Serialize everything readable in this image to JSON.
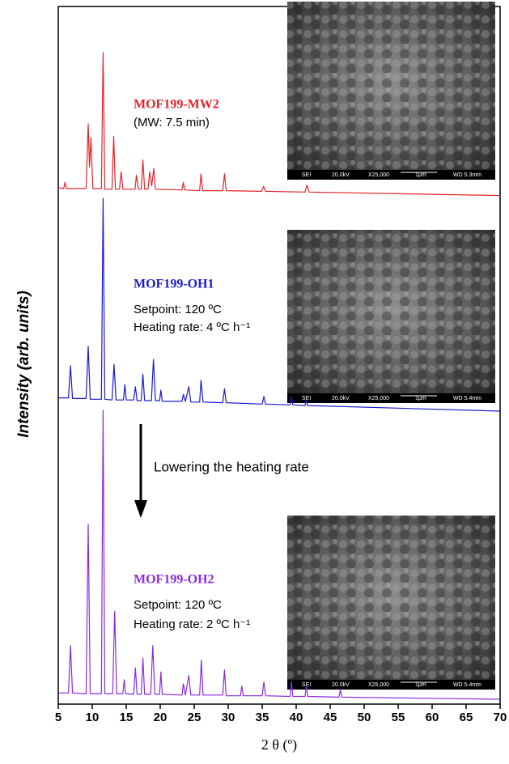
{
  "chart_data": {
    "type": "line",
    "xlabel": "2 θ (º)",
    "ylabel": "Intensity (arb. units)",
    "xlim": [
      5,
      70
    ],
    "xticks": [
      5,
      10,
      15,
      20,
      25,
      30,
      35,
      40,
      45,
      50,
      55,
      60,
      65,
      70
    ],
    "ylim": [
      0,
      100
    ],
    "series": [
      {
        "name": "MOF199-MW2",
        "color": "#e3242b",
        "x": [
          5,
          5.8,
          6.0,
          6.2,
          9.1,
          9.4,
          9.6,
          9.8,
          10.1,
          11.35,
          11.6,
          11.85,
          12.9,
          13.15,
          13.4,
          14.0,
          14.25,
          14.5,
          16.3,
          16.5,
          16.8,
          17.2,
          17.45,
          17.7,
          18.2,
          18.45,
          18.75,
          19.05,
          19.3,
          23.2,
          23.4,
          23.6,
          25.8,
          26.0,
          26.25,
          29.2,
          29.45,
          29.7,
          34.9,
          35.2,
          35.5,
          41.3,
          41.6,
          41.9,
          70
        ],
        "values": [
          74.0,
          73.9,
          74.8,
          73.9,
          73.9,
          83.2,
          77.0,
          81.2,
          73.9,
          73.9,
          93.4,
          73.8,
          73.8,
          81.4,
          73.8,
          73.8,
          76.3,
          73.8,
          73.8,
          75.8,
          73.8,
          73.8,
          78.0,
          73.8,
          73.8,
          76.3,
          74.3,
          76.8,
          73.8,
          73.7,
          74.8,
          73.7,
          73.6,
          76.0,
          73.6,
          73.6,
          76.0,
          73.6,
          73.5,
          74.2,
          73.5,
          73.4,
          74.4,
          73.4,
          72.9
        ]
      },
      {
        "name": "MOF199-OH1",
        "color": "#1a1ad0",
        "x": [
          5,
          6.5,
          6.8,
          7.1,
          9.1,
          9.4,
          9.7,
          11.35,
          11.6,
          11.85,
          12.9,
          13.2,
          13.5,
          14.6,
          14.8,
          15.0,
          16.1,
          16.35,
          16.6,
          17.2,
          17.45,
          17.7,
          18.7,
          19.0,
          19.3,
          19.9,
          20.1,
          20.3,
          23.2,
          23.4,
          23.7,
          24.2,
          24.5,
          25.8,
          26.0,
          26.3,
          29.2,
          29.45,
          29.7,
          35.0,
          35.25,
          35.5,
          39.1,
          39.3,
          39.5,
          41.3,
          41.5,
          41.7,
          70
        ],
        "values": [
          43.9,
          43.9,
          48.5,
          43.8,
          43.8,
          51.3,
          43.7,
          43.7,
          72.5,
          43.7,
          43.6,
          48.7,
          43.6,
          43.6,
          45.8,
          43.6,
          43.6,
          45.5,
          43.5,
          43.5,
          47.3,
          43.5,
          43.5,
          49.4,
          43.5,
          43.5,
          45.0,
          43.4,
          43.4,
          44.4,
          43.4,
          45.5,
          43.3,
          43.3,
          46.4,
          43.3,
          43.2,
          45.2,
          43.2,
          43.0,
          44.1,
          43.0,
          42.9,
          44.1,
          42.9,
          42.8,
          43.5,
          42.8,
          42.0
        ]
      },
      {
        "name": "MOF199-OH2",
        "color": "#8a2be2",
        "x": [
          5,
          6.5,
          6.8,
          7.1,
          9.1,
          9.4,
          9.7,
          11.35,
          11.6,
          11.85,
          13.0,
          13.3,
          13.6,
          14.5,
          14.7,
          14.9,
          16.1,
          16.35,
          16.6,
          17.2,
          17.45,
          17.7,
          18.6,
          18.9,
          19.2,
          19.9,
          20.1,
          20.3,
          23.2,
          23.4,
          23.7,
          24.2,
          24.5,
          25.8,
          26.05,
          26.3,
          29.2,
          29.45,
          29.7,
          31.8,
          32.0,
          32.2,
          35.0,
          35.25,
          35.5,
          39.1,
          39.3,
          39.5,
          41.3,
          41.5,
          41.7,
          46.3,
          46.5,
          46.7,
          70
        ],
        "values": [
          1.6,
          1.6,
          8.4,
          1.6,
          1.5,
          25.8,
          1.5,
          1.5,
          42.1,
          1.5,
          1.5,
          13.3,
          1.5,
          1.5,
          3.5,
          1.5,
          1.4,
          5.2,
          1.4,
          1.4,
          6.6,
          1.4,
          1.4,
          8.4,
          1.4,
          1.4,
          4.6,
          1.4,
          1.3,
          2.9,
          1.3,
          4.1,
          1.3,
          1.3,
          6.3,
          1.3,
          1.3,
          4.9,
          1.2,
          1.2,
          2.6,
          1.2,
          1.2,
          3.2,
          1.2,
          1.1,
          3.2,
          1.1,
          1.1,
          2.6,
          1.1,
          1.0,
          2.1,
          1.0,
          0.7
        ]
      }
    ],
    "annotations": [
      "(MW: 7.5 min)",
      "Setpoint: 120 ºC",
      "Heating rate: 4 ºC h⁻¹",
      "Lowering the heating rate",
      "Setpoint: 120 ºC",
      "Heating rate: 2 ºC h⁻¹"
    ],
    "insets": [
      {
        "labels": [
          "SEI",
          "20.0kV",
          "X25,000",
          "1μm",
          "WD 5.3mm"
        ]
      },
      {
        "labels": [
          "SEI",
          "20.0kV",
          "X25,000",
          "1μm",
          "WD 5.4mm"
        ]
      },
      {
        "labels": [
          "SEI",
          "20.0kV",
          "X25,000",
          "1μm",
          "WD 5.4mm"
        ]
      }
    ]
  }
}
